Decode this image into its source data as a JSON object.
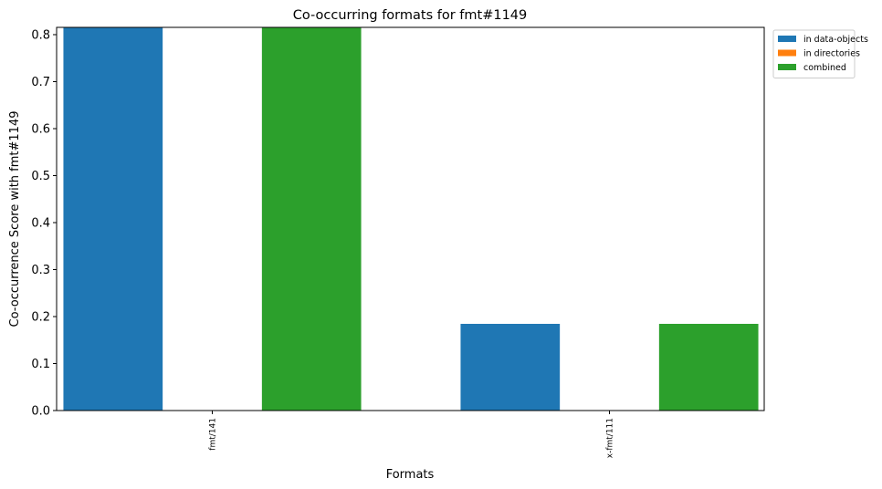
{
  "chart_data": {
    "type": "bar",
    "title": "Co-occurring formats for fmt#1149",
    "xlabel": "Formats",
    "ylabel": "Co-occurrence Score with fmt#1149",
    "categories": [
      "fmt/141",
      "x-fmt/111"
    ],
    "series": [
      {
        "name": "in data-objects",
        "color": "#1f77b4",
        "values": [
          0.8155,
          0.1845
        ]
      },
      {
        "name": "in directories",
        "color": "#ff7f0e",
        "values": [
          0.0,
          0.0
        ]
      },
      {
        "name": "combined",
        "color": "#2ca02c",
        "values": [
          0.8155,
          0.1845
        ]
      }
    ],
    "ylim": [
      0,
      0.8155
    ],
    "yticks": [
      "0.0",
      "0.1",
      "0.2",
      "0.3",
      "0.4",
      "0.5",
      "0.6",
      "0.7",
      "0.8"
    ],
    "ytick_values": [
      0,
      0.1,
      0.2,
      0.3,
      0.4,
      0.5,
      0.6,
      0.7,
      0.8
    ],
    "grid": false,
    "legend_position": "outside top-right"
  }
}
